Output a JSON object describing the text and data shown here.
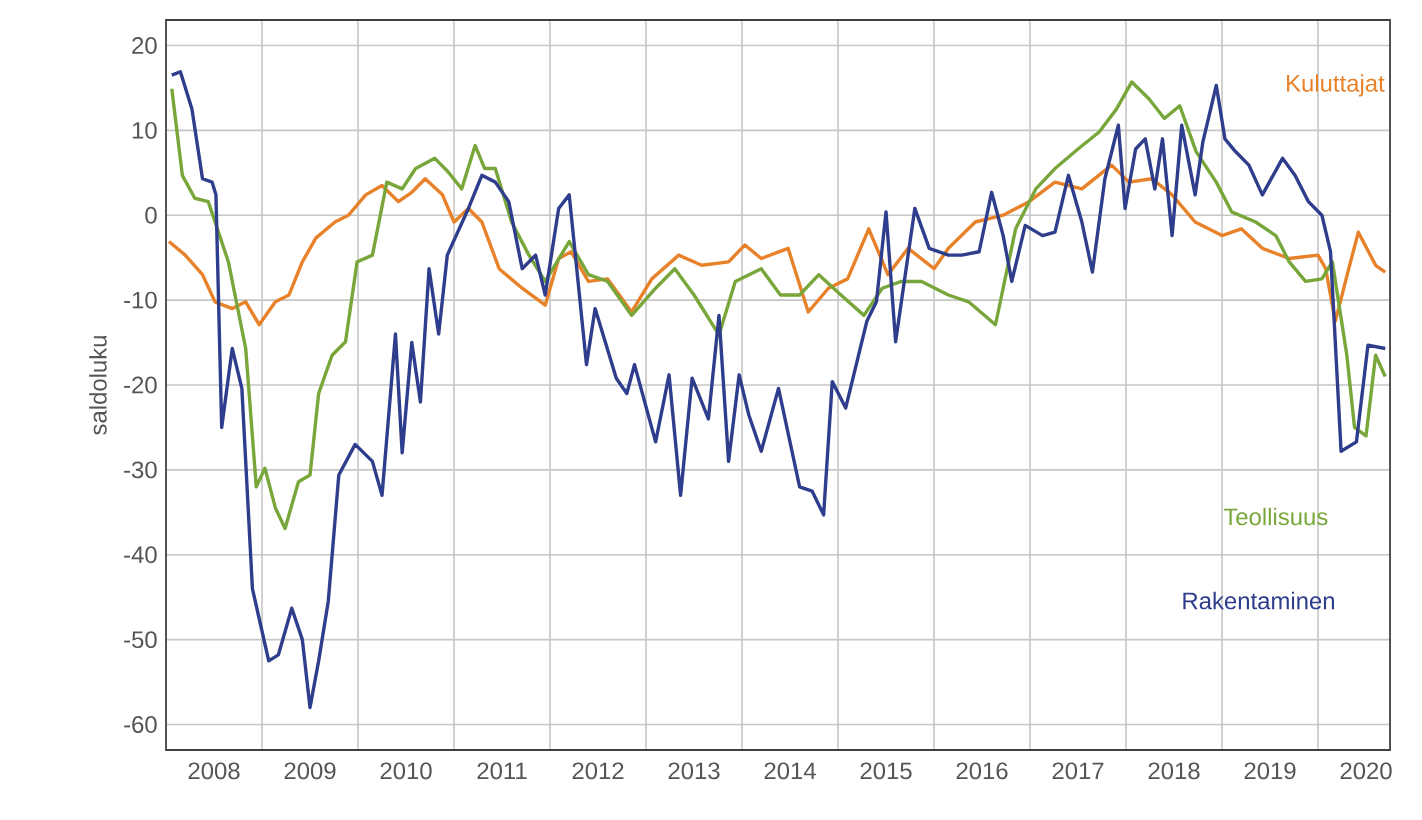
{
  "chart_data": {
    "type": "line",
    "ylabel": "saldoluku",
    "xlim": [
      2008,
      2020.75
    ],
    "ylim": [
      -63,
      23
    ],
    "xticks": [
      {
        "value": 2009,
        "label": null
      },
      {
        "value": 2010,
        "label": null
      },
      {
        "value": 2011,
        "label": null
      },
      {
        "value": 2012,
        "label": null
      },
      {
        "value": 2013,
        "label": null
      },
      {
        "value": 2014,
        "label": null
      },
      {
        "value": 2015,
        "label": null
      },
      {
        "value": 2016,
        "label": null
      },
      {
        "value": 2017,
        "label": null
      },
      {
        "value": 2018,
        "label": null
      },
      {
        "value": 2019,
        "label": null
      },
      {
        "value": 2020,
        "label": null
      },
      {
        "value": 2008.5,
        "label": "2008"
      },
      {
        "value": 2009.5,
        "label": "2009"
      },
      {
        "value": 2010.5,
        "label": "2010"
      },
      {
        "value": 2011.5,
        "label": "2011"
      },
      {
        "value": 2012.5,
        "label": "2012"
      },
      {
        "value": 2013.5,
        "label": "2013"
      },
      {
        "value": 2014.5,
        "label": "2014"
      },
      {
        "value": 2015.5,
        "label": "2015"
      },
      {
        "value": 2016.5,
        "label": "2016"
      },
      {
        "value": 2017.5,
        "label": "2017"
      },
      {
        "value": 2018.5,
        "label": "2018"
      },
      {
        "value": 2019.5,
        "label": "2019"
      },
      {
        "value": 2020.5,
        "label": "2020"
      }
    ],
    "yticks": [
      -60,
      -50,
      -40,
      -30,
      -20,
      -10,
      0,
      10,
      20
    ],
    "grid": true,
    "legend": false,
    "marker": "none",
    "line_style": "solid",
    "series": [
      {
        "name": "Kuluttajat",
        "color": "#e8822a",
        "x": [
          2008.03,
          2008.2,
          2008.38,
          2008.51,
          2008.69,
          2008.83,
          2008.97,
          2009.14,
          2009.28,
          2009.42,
          2009.56,
          2009.76,
          2009.9,
          2010.08,
          2010.25,
          2010.42,
          2010.56,
          2010.7,
          2010.88,
          2011.0,
          2011.15,
          2011.29,
          2011.47,
          2011.71,
          2011.95,
          2012.09,
          2012.22,
          2012.4,
          2012.6,
          2012.85,
          2013.06,
          2013.34,
          2013.58,
          2013.86,
          2014.03,
          2014.2,
          2014.48,
          2014.69,
          2014.9,
          2015.1,
          2015.32,
          2015.52,
          2015.73,
          2016.0,
          2016.15,
          2016.43,
          2016.72,
          2016.99,
          2017.26,
          2017.54,
          2017.85,
          2018.03,
          2018.27,
          2018.48,
          2018.72,
          2019.0,
          2019.2,
          2019.42,
          2019.7,
          2020.0,
          2020.08,
          2020.18,
          2020.32,
          2020.42,
          2020.6,
          2020.7
        ],
        "values": [
          -3.1,
          -4.7,
          -7,
          -10.2,
          -11,
          -10.2,
          -12.9,
          -10.2,
          -9.4,
          -5.5,
          -2.7,
          -0.8,
          0,
          2.4,
          3.5,
          1.6,
          2.7,
          4.3,
          2.4,
          -0.8,
          0.8,
          -0.8,
          -6.3,
          -8.6,
          -10.6,
          -5.1,
          -4.3,
          -7.8,
          -7.5,
          -11.4,
          -7.5,
          -4.7,
          -5.9,
          -5.5,
          -3.5,
          -5.1,
          -3.9,
          -11.4,
          -8.6,
          -7.5,
          -1.6,
          -7,
          -3.9,
          -6.3,
          -3.9,
          -0.8,
          0,
          1.6,
          3.9,
          3.1,
          5.9,
          3.9,
          4.3,
          2.4,
          -0.8,
          -2.4,
          -1.6,
          -3.9,
          -5.1,
          -4.7,
          -6.3,
          -12.5,
          -6.3,
          -2,
          -5.9,
          -6.7
        ]
      },
      {
        "name": "Teollisuus",
        "color": "#78a63a",
        "x": [
          2008.06,
          2008.17,
          2008.3,
          2008.44,
          2008.65,
          2008.83,
          2008.94,
          2009.03,
          2009.14,
          2009.24,
          2009.38,
          2009.5,
          2009.59,
          2009.73,
          2009.87,
          2009.99,
          2010.15,
          2010.3,
          2010.46,
          2010.6,
          2010.8,
          2010.94,
          2011.08,
          2011.22,
          2011.32,
          2011.43,
          2011.6,
          2011.78,
          2011.95,
          2012.2,
          2012.4,
          2012.6,
          2012.85,
          2013.1,
          2013.3,
          2013.5,
          2013.76,
          2013.93,
          2014.2,
          2014.4,
          2014.6,
          2014.8,
          2015.03,
          2015.27,
          2015.46,
          2015.66,
          2015.87,
          2016.15,
          2016.36,
          2016.64,
          2016.85,
          2017.06,
          2017.26,
          2017.5,
          2017.72,
          2017.9,
          2018.06,
          2018.24,
          2018.4,
          2018.56,
          2018.73,
          2018.94,
          2019.1,
          2019.35,
          2019.56,
          2019.7,
          2019.87,
          2020.04,
          2020.15,
          2020.3,
          2020.38,
          2020.5,
          2020.6,
          2020.7
        ],
        "values": [
          14.9,
          4.7,
          2,
          1.6,
          -5.5,
          -15.7,
          -32,
          -29.8,
          -34.5,
          -36.9,
          -31.4,
          -30.6,
          -21,
          -16.5,
          -14.9,
          -5.5,
          -4.7,
          3.9,
          3.1,
          5.5,
          6.7,
          5.1,
          3.1,
          8.2,
          5.5,
          5.5,
          -0.8,
          -4.7,
          -7.8,
          -3.1,
          -7,
          -7.8,
          -11.8,
          -8.6,
          -6.3,
          -9.4,
          -14.1,
          -7.8,
          -6.3,
          -9.4,
          -9.4,
          -7,
          -9.4,
          -11.8,
          -8.6,
          -7.8,
          -7.8,
          -9.4,
          -10.2,
          -12.9,
          -1.6,
          3.1,
          5.5,
          7.8,
          9.8,
          12.5,
          15.7,
          13.7,
          11.4,
          12.9,
          7.5,
          3.9,
          0.4,
          -0.8,
          -2.4,
          -5.5,
          -7.8,
          -7.5,
          -5.5,
          -16.5,
          -25,
          -26,
          -16.5,
          -19
        ]
      },
      {
        "name": "Rakentaminen",
        "color": "#2e3d8c",
        "x": [
          2008.06,
          2008.15,
          2008.27,
          2008.38,
          2008.48,
          2008.52,
          2008.58,
          2008.69,
          2008.79,
          2008.9,
          2009.07,
          2009.17,
          2009.31,
          2009.42,
          2009.5,
          2009.59,
          2009.69,
          2009.8,
          2009.97,
          2010.15,
          2010.25,
          2010.39,
          2010.46,
          2010.56,
          2010.65,
          2010.74,
          2010.84,
          2010.93,
          2011.15,
          2011.29,
          2011.43,
          2011.57,
          2011.71,
          2011.85,
          2011.95,
          2012.09,
          2012.2,
          2012.38,
          2012.47,
          2012.69,
          2012.8,
          2012.88,
          2013.1,
          2013.24,
          2013.36,
          2013.48,
          2013.65,
          2013.76,
          2013.86,
          2013.97,
          2014.07,
          2014.2,
          2014.38,
          2014.6,
          2014.73,
          2014.85,
          2014.94,
          2015.08,
          2015.3,
          2015.4,
          2015.5,
          2015.6,
          2015.8,
          2015.95,
          2016.15,
          2016.29,
          2016.47,
          2016.6,
          2016.72,
          2016.81,
          2016.95,
          2017.13,
          2017.26,
          2017.4,
          2017.54,
          2017.65,
          2017.78,
          2017.92,
          2017.99,
          2018.1,
          2018.2,
          2018.3,
          2018.38,
          2018.48,
          2018.58,
          2018.72,
          2018.8,
          2018.94,
          2019.03,
          2019.14,
          2019.28,
          2019.42,
          2019.63,
          2019.76,
          2019.9,
          2020.04,
          2020.13,
          2020.24,
          2020.4,
          2020.52,
          2020.7
        ],
        "values": [
          16.5,
          16.9,
          12.5,
          4.3,
          3.9,
          2.4,
          -25,
          -15.7,
          -20.4,
          -44,
          -52.5,
          -51.8,
          -46.3,
          -50,
          -58,
          -52.5,
          -45.5,
          -30.6,
          -27,
          -29,
          -33,
          -14,
          -28,
          -15,
          -22,
          -6.3,
          -14,
          -4.7,
          0.8,
          4.7,
          3.9,
          1.6,
          -6.3,
          -4.7,
          -9.4,
          0.8,
          2.4,
          -17.6,
          -11,
          -19.2,
          -21,
          -17.6,
          -26.7,
          -18.8,
          -33,
          -19.2,
          -24,
          -11.8,
          -29,
          -18.8,
          -23.5,
          -27.8,
          -20.4,
          -32,
          -32.5,
          -35.3,
          -19.6,
          -22.7,
          -12.5,
          -10.2,
          0.4,
          -14.9,
          0.8,
          -3.9,
          -4.7,
          -4.7,
          -4.3,
          2.7,
          -2.4,
          -7.8,
          -1.2,
          -2.4,
          -2,
          4.7,
          -0.8,
          -6.7,
          4.3,
          10.6,
          0.8,
          7.8,
          9,
          3.1,
          9,
          -2.4,
          10.6,
          2.4,
          8.6,
          15.3,
          9,
          7.5,
          5.9,
          2.4,
          6.7,
          4.7,
          1.6,
          0,
          -4.3,
          -27.8,
          -26.7,
          -15.3,
          -15.7
        ]
      }
    ]
  }
}
